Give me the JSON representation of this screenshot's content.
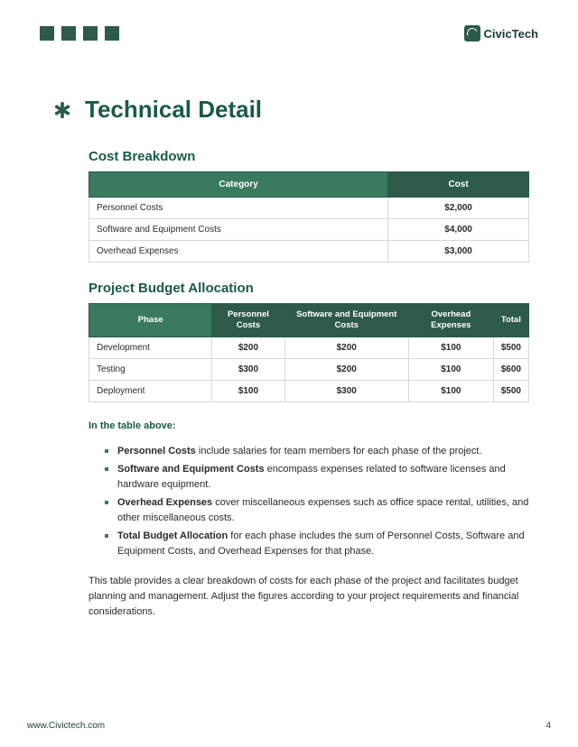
{
  "brand": {
    "name": "CivicTech"
  },
  "colors": {
    "primary_dark": "#2d5a4a",
    "primary_mid": "#3a7a5f",
    "heading_text": "#1a5a4a",
    "body_text": "#2a2a2a",
    "border": "#d8d8d8",
    "page_bg": "#ffffff"
  },
  "page_title": "Technical Detail",
  "section1": {
    "heading": "Cost Breakdown",
    "columns": [
      "Category",
      "Cost"
    ],
    "rows": [
      {
        "category": "Personnel Costs",
        "cost": "$2,000"
      },
      {
        "category": "Software and Equipment Costs",
        "cost": "$4,000"
      },
      {
        "category": "Overhead Expenses",
        "cost": "$3,000"
      }
    ]
  },
  "section2": {
    "heading": "Project Budget Allocation",
    "columns": [
      "Phase",
      "Personnel Costs",
      "Software and Equipment Costs",
      "Overhead Expenses",
      "Total"
    ],
    "rows": [
      {
        "phase": "Development",
        "personnel": "$200",
        "software": "$200",
        "overhead": "$100",
        "total": "$500"
      },
      {
        "phase": "Testing",
        "personnel": "$300",
        "software": "$200",
        "overhead": "$100",
        "total": "$600"
      },
      {
        "phase": "Deployment",
        "personnel": "$100",
        "software": "$300",
        "overhead": "$100",
        "total": "$500"
      }
    ]
  },
  "note_heading": "In the table above:",
  "bullets": [
    {
      "term": "Personnel Costs",
      "rest": " include salaries for team members for each phase of the project."
    },
    {
      "term": "Software and Equipment Costs",
      "rest": " encompass expenses related to software licenses and hardware equipment."
    },
    {
      "term": "Overhead Expenses",
      "rest": " cover miscellaneous expenses such as office space rental, utilities, and other miscellaneous costs."
    },
    {
      "term": "Total Budget Allocation",
      "rest": " for each phase includes the sum of Personnel Costs, Software and Equipment Costs, and Overhead Expenses for that phase."
    }
  ],
  "closing_paragraph": "This table provides a clear breakdown of costs for each phase of the project and facilitates budget planning and management. Adjust the figures according to your project requirements and financial considerations.",
  "footer": {
    "url": "www.Civictech.com",
    "page_number": "4"
  }
}
